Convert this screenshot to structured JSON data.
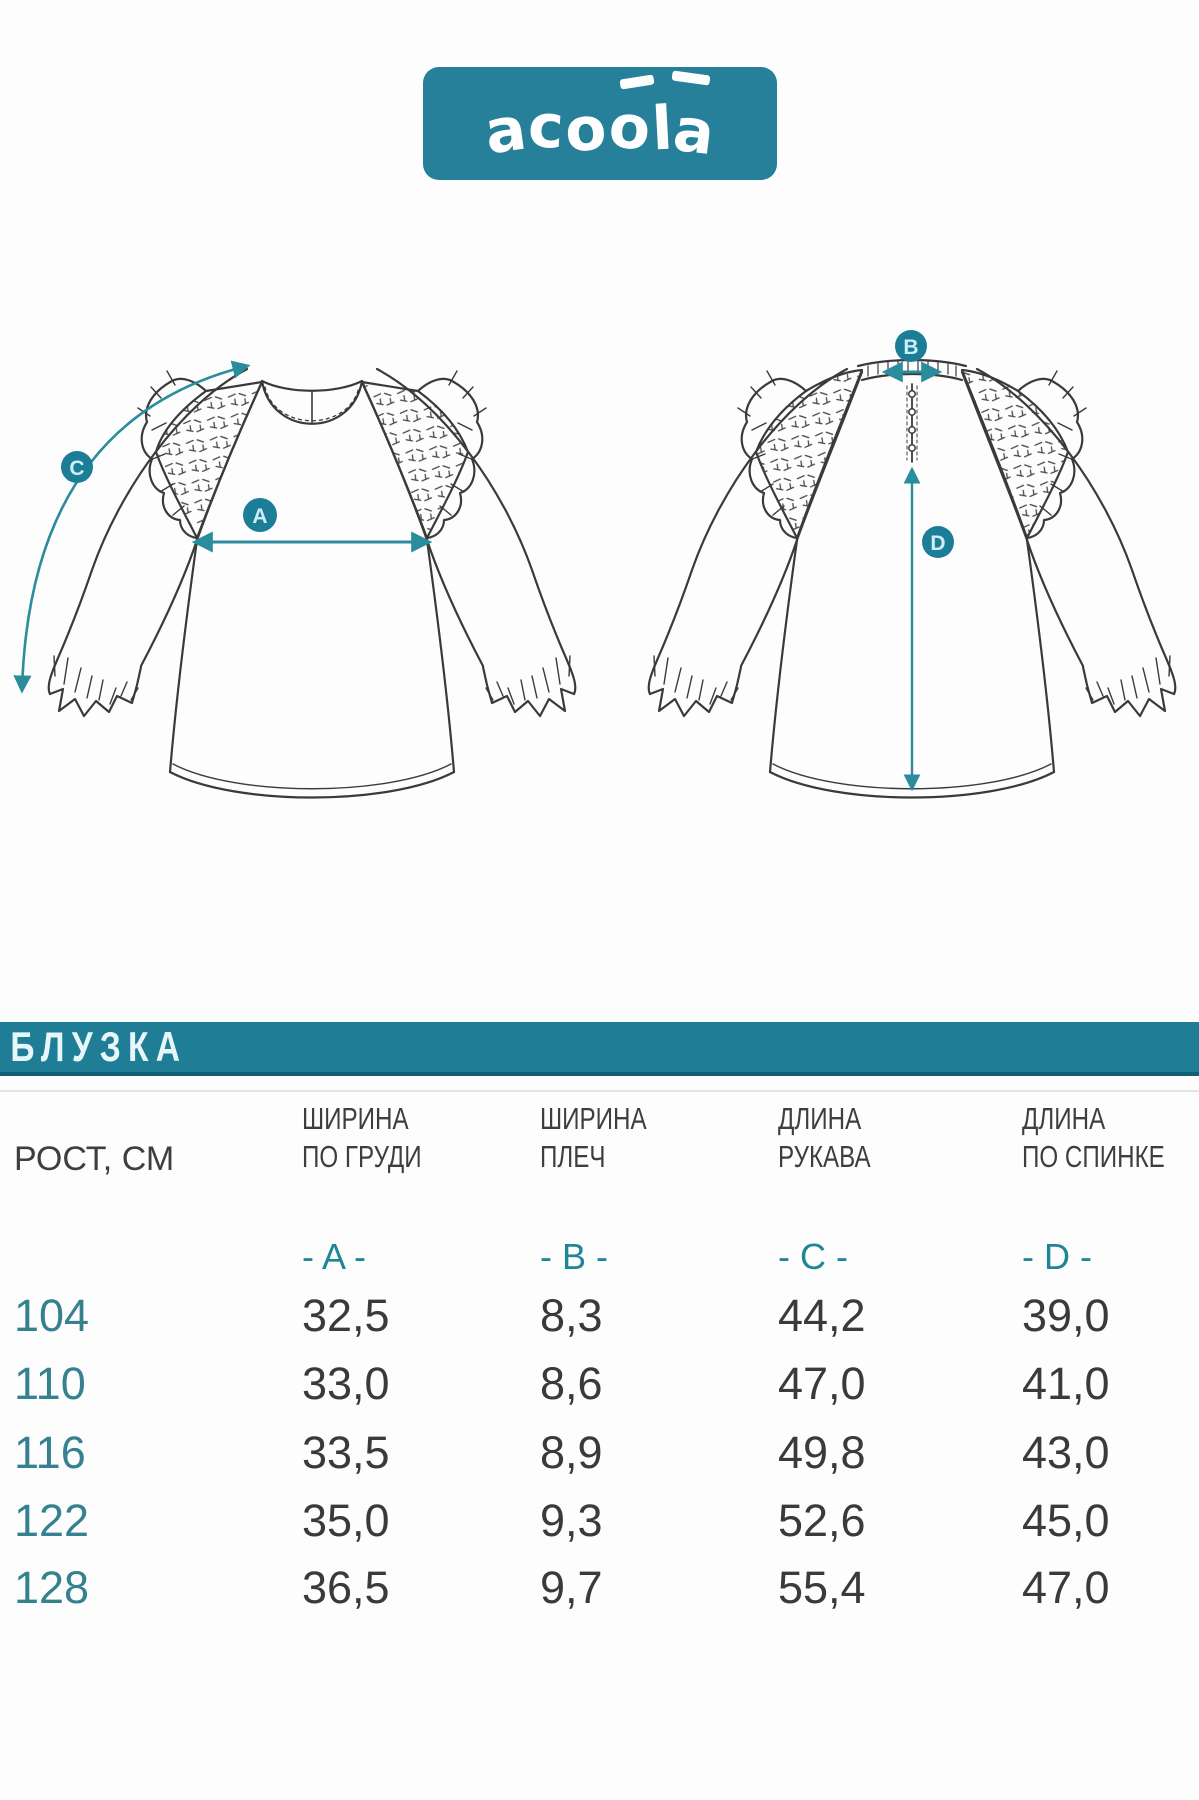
{
  "brand": {
    "logo_text": "acoola"
  },
  "section_title": "БЛУЗКА",
  "diagram": {
    "badges": {
      "chest_width": "A",
      "shoulder_width": "B",
      "sleeve_length": "C",
      "back_length": "D"
    }
  },
  "table": {
    "height_header": "РОСТ, СМ",
    "columns": [
      {
        "title_line1": "ШИРИНА",
        "title_line2": "ПО ГРУДИ",
        "letter": "- A -"
      },
      {
        "title_line1": "ШИРИНА",
        "title_line2": "ПЛЕЧ",
        "letter": "- B -"
      },
      {
        "title_line1": "ДЛИНА",
        "title_line2": "РУКАВА",
        "letter": "- C -"
      },
      {
        "title_line1": "ДЛИНА",
        "title_line2": "ПО СПИНКЕ",
        "letter": "- D -"
      }
    ],
    "rows": [
      {
        "height": "104",
        "chest": "32,5",
        "shoulder": "8,3",
        "sleeve": "44,2",
        "back": "39,0"
      },
      {
        "height": "110",
        "chest": "33,0",
        "shoulder": "8,6",
        "sleeve": "47,0",
        "back": "41,0"
      },
      {
        "height": "116",
        "chest": "33,5",
        "shoulder": "8,9",
        "sleeve": "49,8",
        "back": "43,0"
      },
      {
        "height": "122",
        "chest": "35,0",
        "shoulder": "9,3",
        "sleeve": "52,6",
        "back": "45,0"
      },
      {
        "height": "128",
        "chest": "36,5",
        "shoulder": "9,7",
        "sleeve": "55,4",
        "back": "47,0"
      }
    ]
  },
  "colors": {
    "teal_band": "#1f7d95",
    "logo_background": "#27809a",
    "badge_fill": "#1b7e96",
    "badge_letter": "#cdeef6",
    "arrow": "#2b8c9e",
    "size_text": "#35818f",
    "value_text": "#3a3a3a",
    "drawing_stroke": "#3a3a3a"
  }
}
